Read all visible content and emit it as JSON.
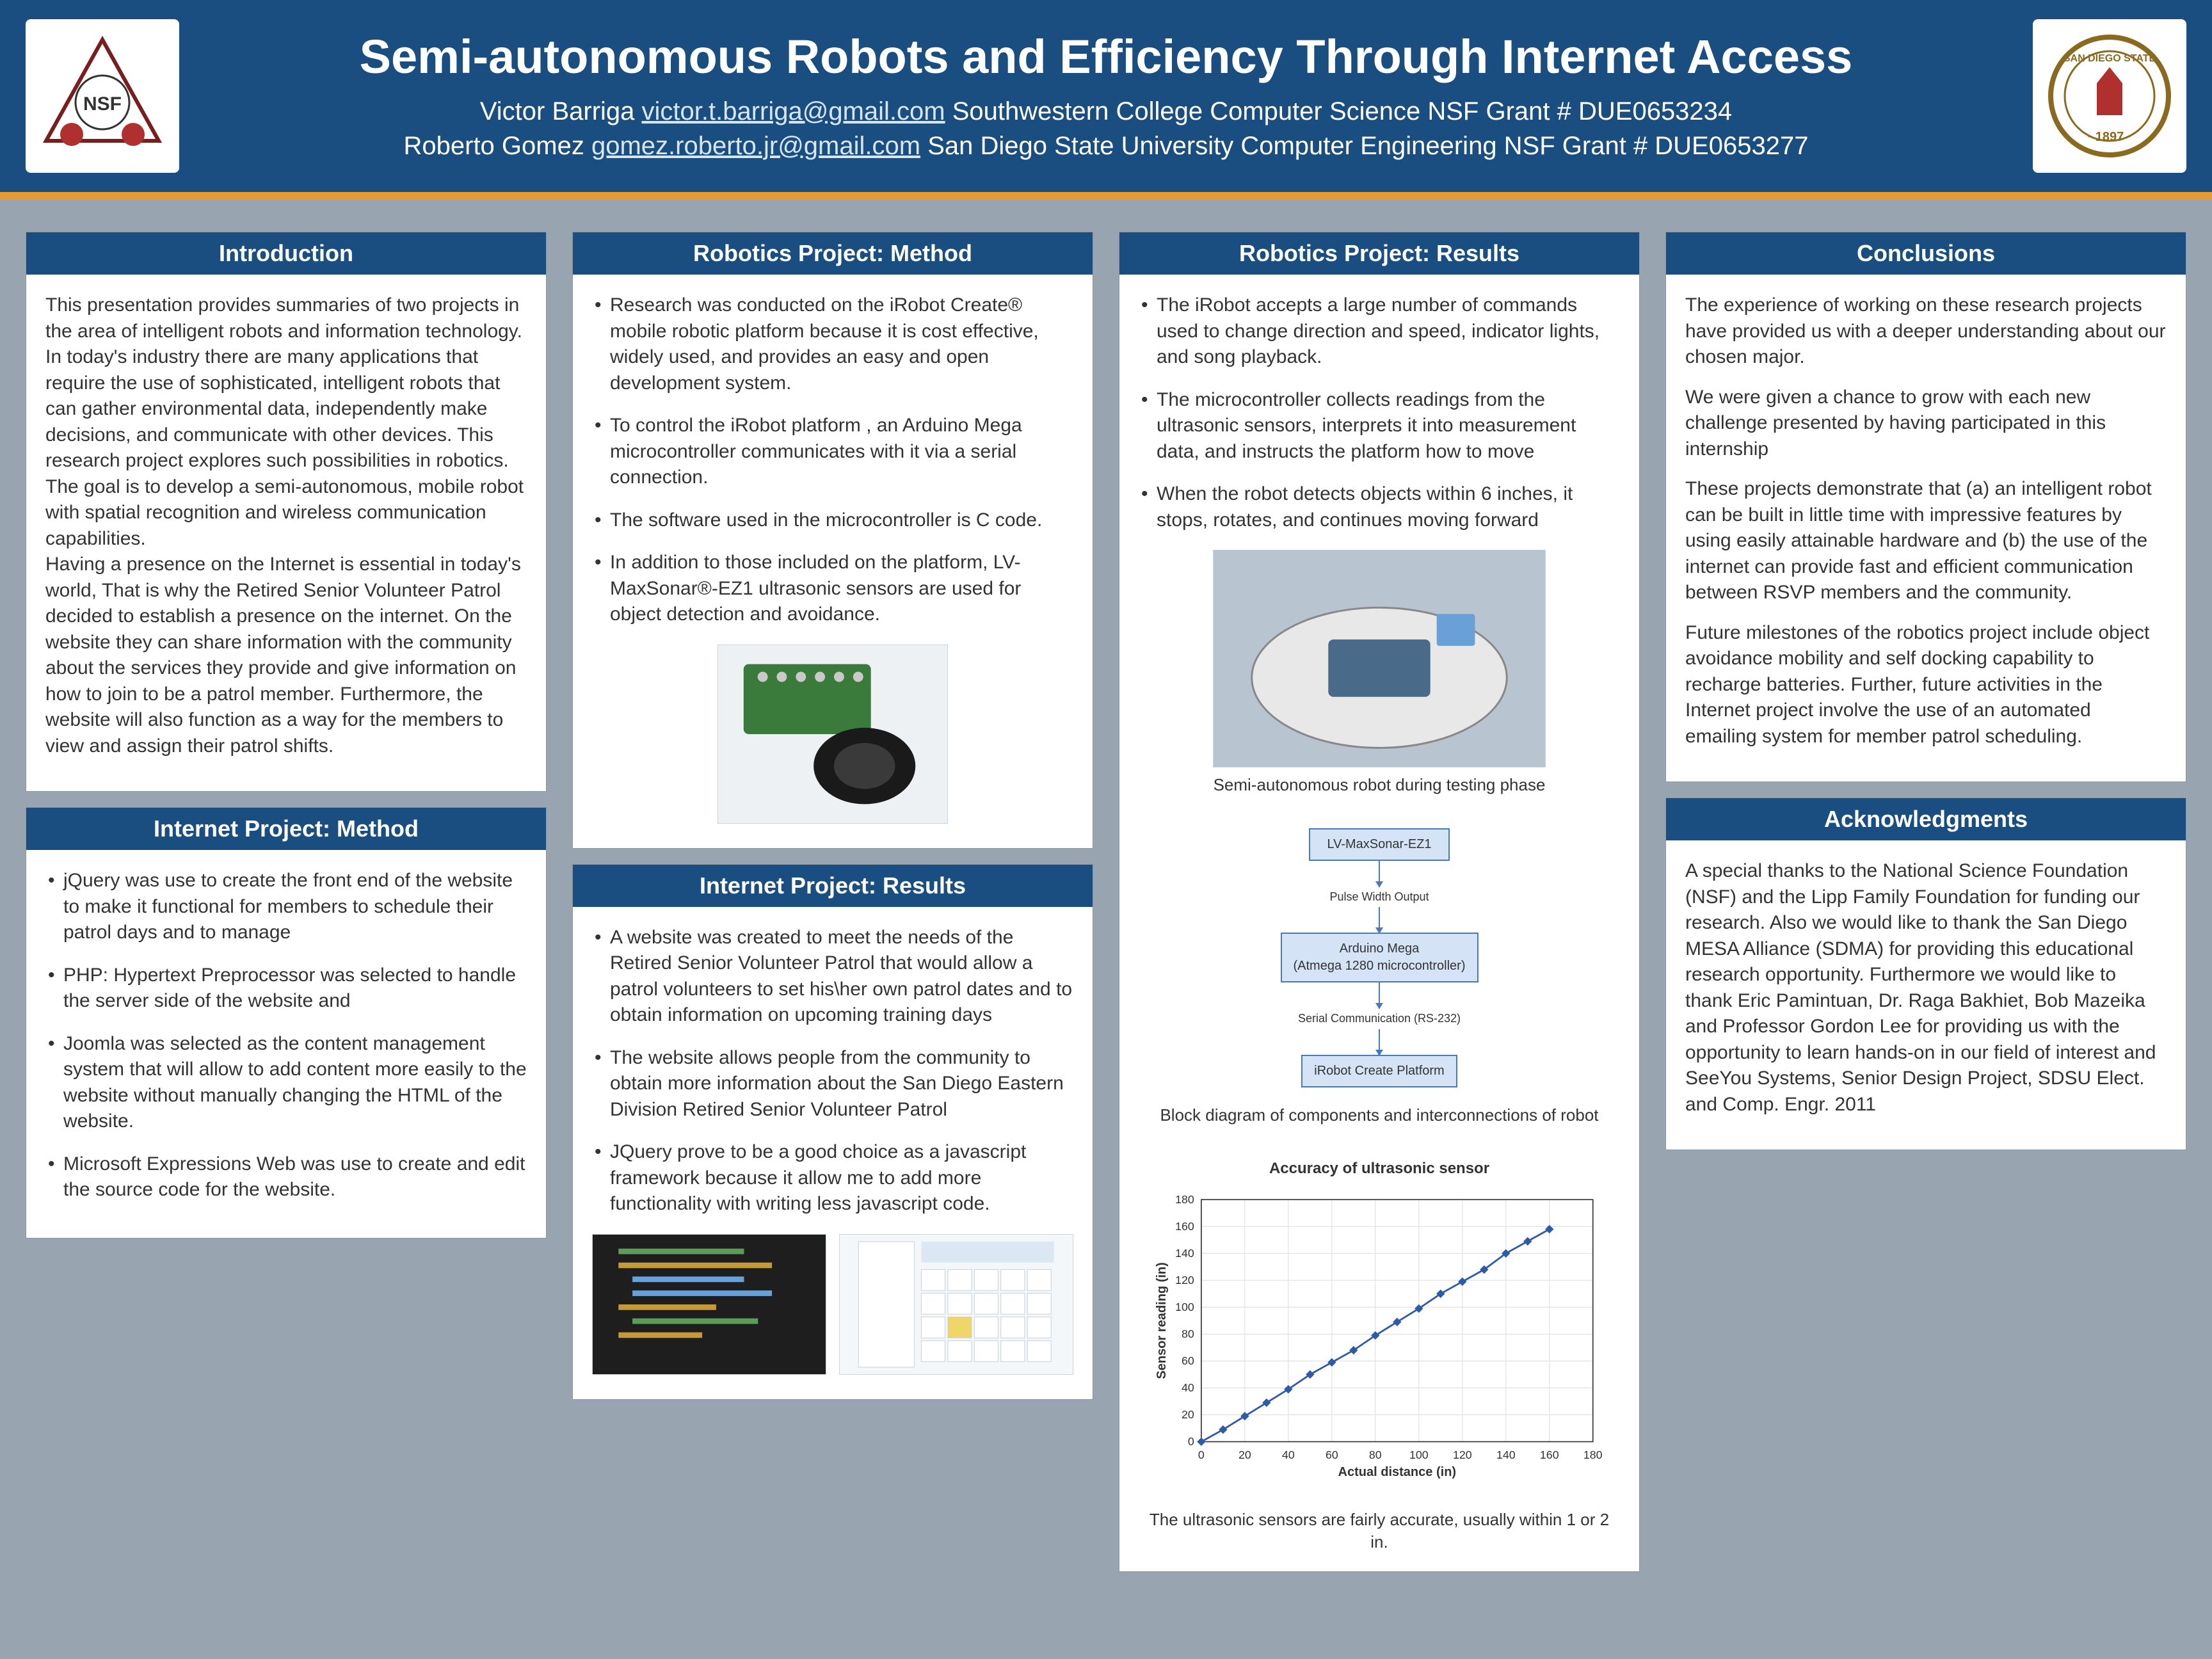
{
  "header": {
    "title": "Semi-autonomous Robots and Efficiency Through Internet Access",
    "author1_name": "Victor Barriga",
    "author1_email": "victor.t.barriga@gmail.com",
    "author1_affil": "Southwestern College Computer Science NSF Grant # DUE0653234",
    "author2_name": "Roberto Gomez",
    "author2_email": "gomez.roberto.jr@gmail.com",
    "author2_affil": "San Diego State University Computer Engineering NSF Grant # DUE0653277",
    "logo_left_label": "NSF / STEP Partnership of San Diego (SPSD)",
    "logo_right_label": "San Diego State University · 1897"
  },
  "colors": {
    "header_bg": "#1a4d80",
    "accent_bar": "#e89a2e",
    "page_bg": "#98a5b0",
    "panel_bg": "#ffffff",
    "panel_title_bg": "#1a4d80",
    "panel_title_fg": "#ffffff",
    "body_text": "#333333",
    "link": "#d6e6f5",
    "node_border": "#4a7ab8",
    "node_fill": "#d4e3f5",
    "chart_line": "#2f5aa8"
  },
  "intro": {
    "title": "Introduction",
    "body": "This presentation provides summaries of two projects in the area of intelligent robots and information technology.\n   In today's industry there are many applications that require the use of sophisticated, intelligent robots that can gather environmental data, independently make decisions, and communicate with other devices. This research project explores such possibilities in robotics. The goal is to develop a semi-autonomous, mobile robot with spatial recognition and wireless communication capabilities.\n Having a presence on the Internet is essential in today's world,  That is why the Retired Senior Volunteer Patrol decided to establish a presence on the internet. On the website they can share information with the community about the services they provide and give information on how to join to be a patrol member. Furthermore, the website will also function as a way for the members to view and assign their patrol shifts."
  },
  "internet_method": {
    "title": "Internet Project: Method",
    "items": [
      "jQuery was use to create the front end of the website to make it functional for members to schedule their patrol days and to manage",
      "PHP: Hypertext Preprocessor  was selected to handle the server side of the website and",
      "Joomla was selected as the content management system that will allow to add content more easily to the website without manually changing the HTML of the website.",
      "Microsoft Expressions Web was use to create and edit the source code for the website."
    ]
  },
  "robotics_method": {
    "title": "Robotics Project: Method",
    "items": [
      "Research was conducted on the iRobot Create® mobile robotic platform because it is cost effective, widely used, and provides an easy and open development system.",
      "To control the iRobot platform , an Arduino Mega microcontroller communicates with it via a serial connection.",
      "The software used in the microcontroller is C code.",
      "In addition to those included on the platform, LV-MaxSonar®-EZ1 ultrasonic sensors are used for object detection and avoidance."
    ],
    "image_alt": "LV-MaxSonar EZ1 ultrasonic sensor"
  },
  "internet_results": {
    "title": "Internet Project: Results",
    "items": [
      "A website was created to meet the needs of the Retired Senior Volunteer Patrol that would allow a patrol volunteers to set his\\her own patrol dates and to obtain information on upcoming training days",
      "The website allows people from the community to obtain more information about the  San Diego Eastern Division Retired Senior Volunteer Patrol",
      "JQuery prove to be a good choice as a javascript framework because it allow me to add more functionality with writing less javascript code."
    ],
    "screenshot1_alt": "Source code editor screenshot",
    "screenshot2_alt": "Patrol calendar web page screenshot"
  },
  "robotics_results": {
    "title": "Robotics Project: Results",
    "items": [
      "The iRobot accepts a large number of commands used to change direction and speed, indicator lights, and song playback.",
      "The microcontroller collects readings from the ultrasonic sensors, interprets it into measurement data, and instructs the platform how to move",
      " When the robot detects objects within 6 inches, it stops, rotates, and continues moving forward"
    ],
    "robot_image_caption": "Semi-autonomous robot during testing phase",
    "block_diagram": {
      "caption": "Block diagram of components and interconnections of robot",
      "nodes": [
        "LV-MaxSonar-EZ1",
        "Arduino Mega\n(Atmega 1280 microcontroller)",
        "iRobot Create Platform"
      ],
      "edge_labels": [
        "Pulse Width Output",
        "Serial Communication (RS-232)"
      ]
    },
    "chart": {
      "type": "scatter-line",
      "title": "Accuracy of ultrasonic sensor",
      "xlabel": "Actual distance (in)",
      "ylabel": "Sensor reading (in)",
      "xlim": [
        0,
        180
      ],
      "ylim": [
        0,
        180
      ],
      "xtick_step": 20,
      "ytick_step": 20,
      "grid": true,
      "grid_color": "#e0e0e0",
      "line_color": "#2f5aa8",
      "marker": "diamond",
      "marker_size": 6,
      "x": [
        0,
        10,
        20,
        30,
        40,
        50,
        60,
        70,
        80,
        90,
        100,
        110,
        120,
        130,
        140,
        150,
        160
      ],
      "y": [
        0,
        9,
        19,
        29,
        39,
        50,
        59,
        68,
        79,
        89,
        99,
        110,
        119,
        128,
        140,
        149,
        158
      ]
    },
    "chart_caption": "The ultrasonic sensors are fairly accurate, usually within 1 or 2 in."
  },
  "conclusions": {
    "title": "Conclusions",
    "paragraphs": [
      "The experience of working on these research projects have provided us with a deeper understanding about our chosen major.",
      " We were given a chance to grow with each new challenge presented by having participated in this internship",
      "These projects demonstrate that (a) an intelligent robot can be built in little time with impressive features by using easily attainable hardware and (b) the use of the internet can provide fast and efficient communication between RSVP members and the community.",
      "Future milestones of the  robotics project include object avoidance mobility and self docking capability to recharge batteries. Further, future activities in the Internet project involve the use of an automated emailing system for member patrol scheduling."
    ]
  },
  "acknowledgments": {
    "title": "Acknowledgments",
    "body": "A special thanks to the National Science Foundation (NSF) and the Lipp Family Foundation for funding our research. Also we would like to thank the San Diego MESA Alliance (SDMA) for providing this educational research opportunity. Furthermore we would like  to thank Eric Pamintuan, Dr. Raga Bakhiet, Bob Mazeika and Professor Gordon Lee for providing us with the opportunity to learn hands-on in our field of interest and SeeYou Systems, Senior Design Project, SDSU Elect. and Comp. Engr. 2011"
  }
}
